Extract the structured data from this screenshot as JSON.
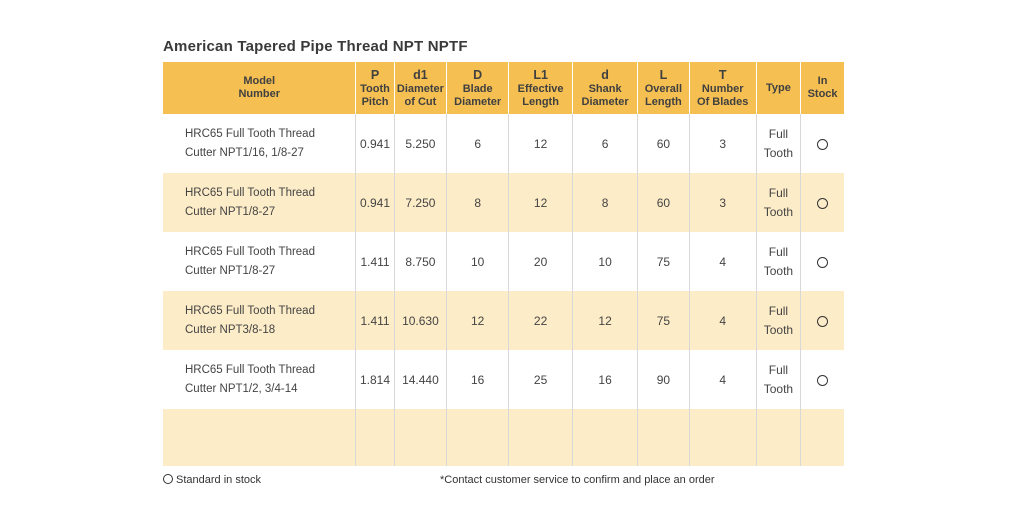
{
  "title": "American Tapered Pipe Thread NPT NPTF",
  "headers": [
    {
      "sym": "",
      "label": "Model\nNumber"
    },
    {
      "sym": "P",
      "label": "Tooth\nPitch"
    },
    {
      "sym": "d1",
      "label": "Diameter\nof Cut"
    },
    {
      "sym": "D",
      "label": "Blade\nDiameter"
    },
    {
      "sym": "L1",
      "label": "Effective\nLength"
    },
    {
      "sym": "d",
      "label": "Shank\nDiameter"
    },
    {
      "sym": "L",
      "label": "Overall\nLength"
    },
    {
      "sym": "T",
      "label": "Number\nOf Blades"
    },
    {
      "sym": "",
      "label": "Type"
    },
    {
      "sym": "",
      "label": "In\nStock"
    }
  ],
  "rows": [
    {
      "model_line1": "HRC65 Full Tooth Thread",
      "model_line2": "Cutter NPT1/16, 1/8-27",
      "pitch": "0.941",
      "diameter_cut": "5.250",
      "blade_diameter": "6",
      "effective_length": "12",
      "shank_diameter": "6",
      "overall_length": "60",
      "blades": "3",
      "type_line1": "Full",
      "type_line2": "Tooth",
      "in_stock": "standard"
    },
    {
      "model_line1": "HRC65 Full Tooth Thread",
      "model_line2": "Cutter NPT1/8-27",
      "pitch": "0.941",
      "diameter_cut": "7.250",
      "blade_diameter": "8",
      "effective_length": "12",
      "shank_diameter": "8",
      "overall_length": "60",
      "blades": "3",
      "type_line1": "Full",
      "type_line2": "Tooth",
      "in_stock": "standard"
    },
    {
      "model_line1": "HRC65 Full Tooth Thread",
      "model_line2": "Cutter NPT1/8-27",
      "pitch": "1.411",
      "diameter_cut": "8.750",
      "blade_diameter": "10",
      "effective_length": "20",
      "shank_diameter": "10",
      "overall_length": "75",
      "blades": "4",
      "type_line1": "Full",
      "type_line2": "Tooth",
      "in_stock": "standard"
    },
    {
      "model_line1": "HRC65 Full Tooth Thread",
      "model_line2": "Cutter NPT3/8-18",
      "pitch": "1.411",
      "diameter_cut": "10.630",
      "blade_diameter": "12",
      "effective_length": "22",
      "shank_diameter": "12",
      "overall_length": "75",
      "blades": "4",
      "type_line1": "Full",
      "type_line2": "Tooth",
      "in_stock": "standard"
    },
    {
      "model_line1": "HRC65 Full Tooth Thread",
      "model_line2": "Cutter NPT1/2, 3/4-14",
      "pitch": "1.814",
      "diameter_cut": "14.440",
      "blade_diameter": "16",
      "effective_length": "25",
      "shank_diameter": "16",
      "overall_length": "90",
      "blades": "4",
      "type_line1": "Full",
      "type_line2": "Tooth",
      "in_stock": "standard"
    }
  ],
  "footer": {
    "legend": "Standard in stock",
    "note": "*Contact customer service to confirm and place an order"
  },
  "colors": {
    "header_bg": "#f5bf52",
    "shaded_row_bg": "#fdecc8"
  },
  "icons": {
    "in_stock": "circle-outline-icon"
  }
}
